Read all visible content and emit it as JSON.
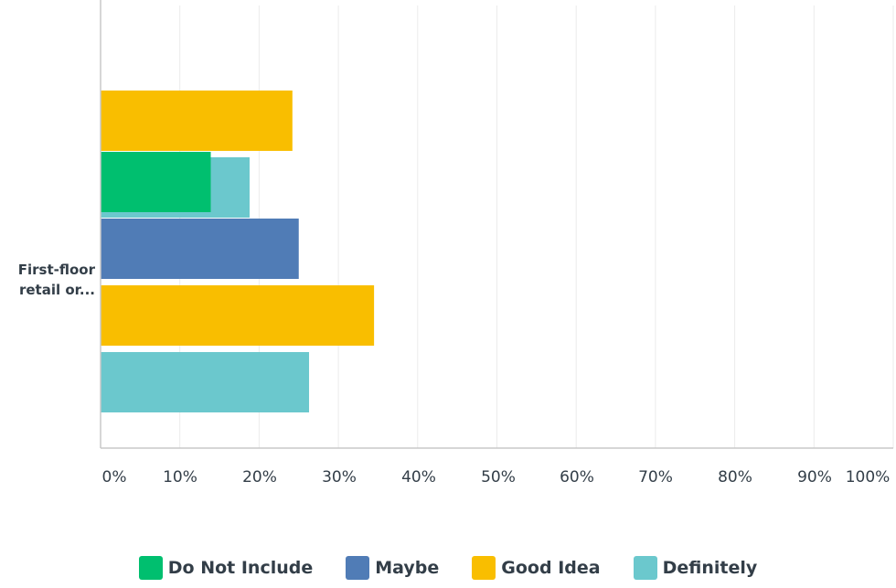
{
  "chart_data": {
    "type": "bar",
    "orientation": "horizontal",
    "categories": [
      "",
      "First-floor retail or..."
    ],
    "category_labels": [
      "",
      "First-floor\nretail or..."
    ],
    "series": [
      {
        "name": "Do Not Include",
        "color": "#00bf6f",
        "values": [
          null,
          13.9
        ]
      },
      {
        "name": "Maybe",
        "color": "#507cb6",
        "values": [
          null,
          25.0
        ]
      },
      {
        "name": "Good Idea",
        "color": "#f9be00",
        "values": [
          24.2,
          34.5
        ]
      },
      {
        "name": "Definitely",
        "color": "#6bc8cd",
        "values": [
          18.8,
          26.3
        ]
      }
    ],
    "x_ticks": [
      "0%",
      "10%",
      "20%",
      "30%",
      "40%",
      "50%",
      "60%",
      "70%",
      "80%",
      "90%",
      "100%"
    ],
    "xlim": [
      0,
      100
    ],
    "grid": true,
    "legend_position": "bottom"
  }
}
